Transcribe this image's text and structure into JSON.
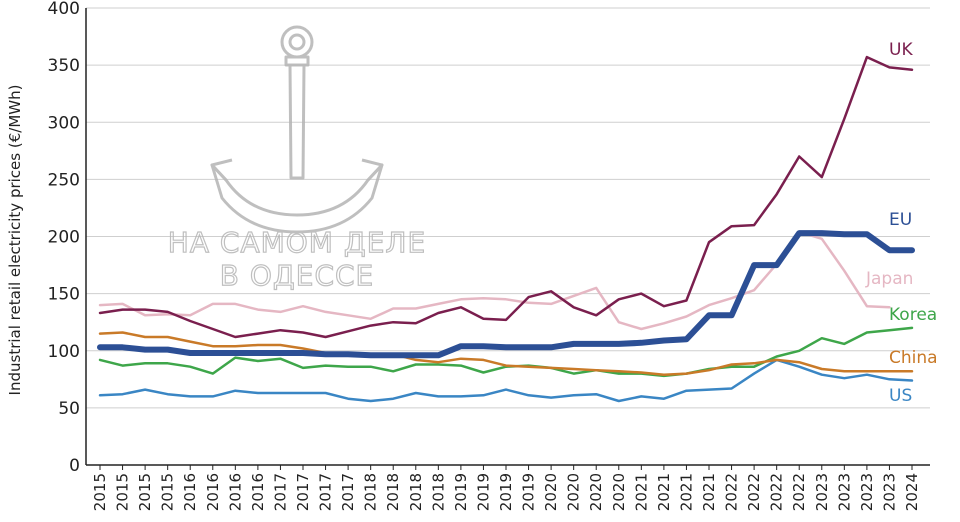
{
  "chart_data": {
    "type": "line",
    "title": "",
    "xlabel": "",
    "ylabel": "Industrial retail electricity prices (€/MWh)",
    "ylim": [
      0,
      400
    ],
    "yticks": [
      "0",
      "50",
      "100",
      "150",
      "200",
      "250",
      "300",
      "350",
      "400"
    ],
    "grid": "horizontal",
    "legend": "inline-right",
    "categories": [
      "2015",
      "2015",
      "2015",
      "2015",
      "2016",
      "2016",
      "2016",
      "2016",
      "2017",
      "2017",
      "2017",
      "2017",
      "2018",
      "2018",
      "2018",
      "2018",
      "2019",
      "2019",
      "2019",
      "2019",
      "2020",
      "2020",
      "2020",
      "2020",
      "2021",
      "2021",
      "2021",
      "2021",
      "2022",
      "2022",
      "2022",
      "2022",
      "2023",
      "2023",
      "2023",
      "2023",
      "2024"
    ],
    "series": [
      {
        "name": "UK",
        "color": "#7a1f4e",
        "values": [
          133,
          136,
          136,
          134,
          126,
          119,
          112,
          115,
          118,
          116,
          112,
          117,
          122,
          125,
          124,
          133,
          138,
          128,
          127,
          147,
          152,
          138,
          131,
          145,
          150,
          139,
          144,
          195,
          209,
          210,
          237,
          270,
          252,
          303,
          357,
          348,
          346
        ]
      },
      {
        "name": "EU",
        "color": "#2c4f95",
        "values": [
          103,
          103,
          101,
          101,
          98,
          98,
          98,
          98,
          98,
          98,
          97,
          97,
          96,
          96,
          96,
          96,
          104,
          104,
          103,
          103,
          103,
          106,
          106,
          106,
          107,
          109,
          110,
          131,
          131,
          175,
          175,
          203,
          203,
          202,
          202,
          188,
          188
        ]
      },
      {
        "name": "Japan",
        "color": "#e5b7c3",
        "values": [
          140,
          141,
          131,
          132,
          131,
          141,
          141,
          136,
          134,
          139,
          134,
          131,
          128,
          137,
          137,
          141,
          145,
          146,
          145,
          142,
          141,
          148,
          155,
          125,
          119,
          124,
          130,
          140,
          146,
          153,
          176,
          204,
          198,
          170,
          139,
          138,
          null
        ]
      },
      {
        "name": "Korea",
        "color": "#3ea64a",
        "values": [
          92,
          87,
          89,
          89,
          86,
          80,
          94,
          91,
          93,
          85,
          87,
          86,
          86,
          82,
          88,
          88,
          87,
          81,
          86,
          87,
          85,
          80,
          83,
          80,
          80,
          78,
          80,
          84,
          86,
          86,
          95,
          100,
          111,
          106,
          116,
          118,
          120
        ]
      },
      {
        "name": "China",
        "color": "#c97a28",
        "values": [
          115,
          116,
          112,
          112,
          108,
          104,
          104,
          105,
          105,
          102,
          98,
          98,
          97,
          97,
          92,
          90,
          93,
          92,
          87,
          86,
          85,
          84,
          83,
          82,
          81,
          79,
          80,
          83,
          88,
          89,
          92,
          90,
          84,
          82,
          82,
          82,
          82
        ]
      },
      {
        "name": "US",
        "color": "#3a86c4",
        "values": [
          61,
          62,
          66,
          62,
          60,
          60,
          65,
          63,
          63,
          63,
          63,
          58,
          56,
          58,
          63,
          60,
          60,
          61,
          66,
          61,
          59,
          61,
          62,
          56,
          60,
          58,
          65,
          66,
          67,
          80,
          92,
          86,
          79,
          76,
          79,
          75,
          74
        ]
      }
    ]
  },
  "watermark": {
    "line1": "НА САМОМ ДЕЛЕ",
    "line2": "В ОДЕССЕ"
  }
}
